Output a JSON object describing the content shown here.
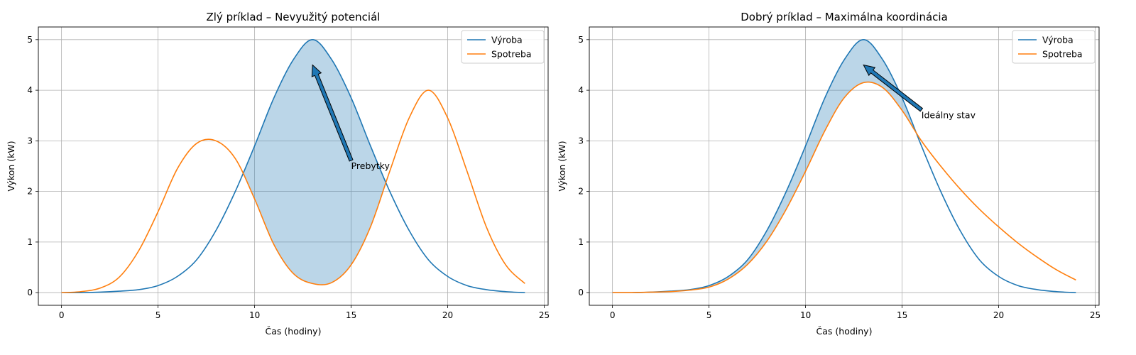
{
  "colors": {
    "production": "#1f77b4",
    "consumption": "#ff7f0e",
    "fill": "#1f77b4",
    "grid": "#b0b0b0",
    "arrow": "#1f77b4"
  },
  "chart_data": [
    {
      "type": "line",
      "title": "Zlý príklad – Nevyužitý potenciál",
      "xlabel": "Čas (hodiny)",
      "ylabel": "Výkon (kW)",
      "xlim": [
        -1.2,
        25.2
      ],
      "ylim": [
        -0.25,
        5.25
      ],
      "xticks": [
        0,
        5,
        10,
        15,
        20,
        25
      ],
      "yticks": [
        0,
        1,
        2,
        3,
        4,
        5
      ],
      "grid": true,
      "legend_position": "top-right",
      "fill_between": true,
      "x": [
        0,
        1,
        2,
        3,
        4,
        5,
        6,
        7,
        8,
        9,
        10,
        11,
        12,
        13,
        14,
        15,
        16,
        17,
        18,
        19,
        20,
        21,
        22,
        23,
        24
      ],
      "series": [
        {
          "name": "Výroba",
          "values": [
            0.0,
            0.0,
            0.01,
            0.03,
            0.06,
            0.14,
            0.32,
            0.65,
            1.23,
            2.0,
            2.9,
            3.85,
            4.6,
            5.0,
            4.6,
            3.85,
            2.9,
            2.0,
            1.23,
            0.65,
            0.32,
            0.14,
            0.06,
            0.02,
            0.0
          ]
        },
        {
          "name": "Spotreba",
          "values": [
            0.0,
            0.02,
            0.09,
            0.31,
            0.83,
            1.6,
            2.45,
            2.95,
            3.0,
            2.65,
            1.85,
            0.95,
            0.38,
            0.18,
            0.2,
            0.55,
            1.3,
            2.4,
            3.45,
            4.0,
            3.45,
            2.4,
            1.3,
            0.55,
            0.18
          ]
        }
      ],
      "annotation": {
        "text": "Prebytky",
        "xy": [
          13,
          4.5
        ],
        "xytext": [
          15,
          2.5
        ]
      }
    },
    {
      "type": "line",
      "title": "Dobrý príklad – Maximálna koordinácia",
      "xlabel": "Čas (hodiny)",
      "ylabel": "Výkon (kW)",
      "xlim": [
        -1.2,
        25.2
      ],
      "ylim": [
        -0.25,
        5.25
      ],
      "xticks": [
        0,
        5,
        10,
        15,
        20,
        25
      ],
      "yticks": [
        0,
        1,
        2,
        3,
        4,
        5
      ],
      "grid": true,
      "legend_position": "top-right",
      "fill_between": true,
      "x": [
        0,
        1,
        2,
        3,
        4,
        5,
        6,
        7,
        8,
        9,
        10,
        11,
        12,
        13,
        14,
        15,
        16,
        17,
        18,
        19,
        20,
        21,
        22,
        23,
        24
      ],
      "series": [
        {
          "name": "Výroba",
          "values": [
            0.0,
            0.0,
            0.01,
            0.03,
            0.06,
            0.14,
            0.32,
            0.65,
            1.23,
            2.0,
            2.9,
            3.85,
            4.6,
            5.0,
            4.6,
            3.85,
            2.9,
            2.0,
            1.23,
            0.65,
            0.32,
            0.14,
            0.06,
            0.02,
            0.0
          ]
        },
        {
          "name": "Spotreba",
          "values": [
            0.0,
            0.0,
            0.01,
            0.02,
            0.05,
            0.11,
            0.27,
            0.56,
            1.02,
            1.65,
            2.4,
            3.2,
            3.85,
            4.15,
            4.05,
            3.6,
            3.0,
            2.5,
            2.05,
            1.65,
            1.3,
            0.98,
            0.7,
            0.45,
            0.25
          ]
        }
      ],
      "annotation": {
        "text": "Ideálny stav",
        "xy": [
          13,
          4.5
        ],
        "xytext": [
          16,
          3.5
        ]
      }
    }
  ]
}
